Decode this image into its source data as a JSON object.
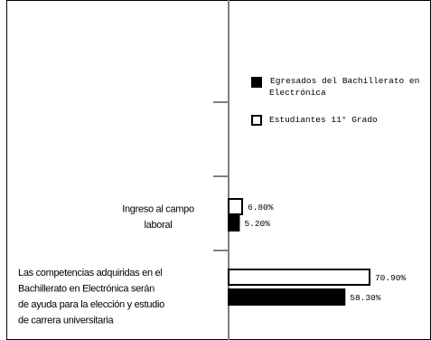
{
  "chart_data": {
    "type": "bar",
    "orientation": "horizontal",
    "categories": [
      "Las competencias adquiridas en el Bachillerato en Electrónica serán de ayuda para la elección y estudio de carrera universitaria",
      "Ingreso al campo laboral"
    ],
    "category_lines": [
      [
        "Las competencias adquiridas en el",
        "Bachillerato en Electrónica serán",
        "de ayuda para la elección y estudio",
        "de carrera universitaria"
      ],
      [
        "Ingreso al campo",
        "laboral"
      ]
    ],
    "series": [
      {
        "name": "Estudiantes 11° Grado",
        "fill": "#ffffff",
        "values": [
          70.9,
          6.8
        ],
        "labels": [
          "70.90%",
          "6.80%"
        ]
      },
      {
        "name": "Egresados del Bachillerato en Electrónica",
        "fill": "#000000",
        "values": [
          58.3,
          5.2
        ],
        "labels": [
          "58.30%",
          "5.20%"
        ]
      }
    ],
    "legend": {
      "position": "right",
      "entries": [
        {
          "lines": [
            "Egresados del Bachillerato en",
            "Electrónica"
          ],
          "fill": "#000000"
        },
        {
          "lines": [
            "Estudiantes 11° Grado"
          ],
          "fill": "#ffffff"
        }
      ]
    },
    "xlim": [
      0,
      100
    ],
    "grid": false,
    "colors": {
      "axis": "#808080",
      "border": "#000000"
    }
  }
}
